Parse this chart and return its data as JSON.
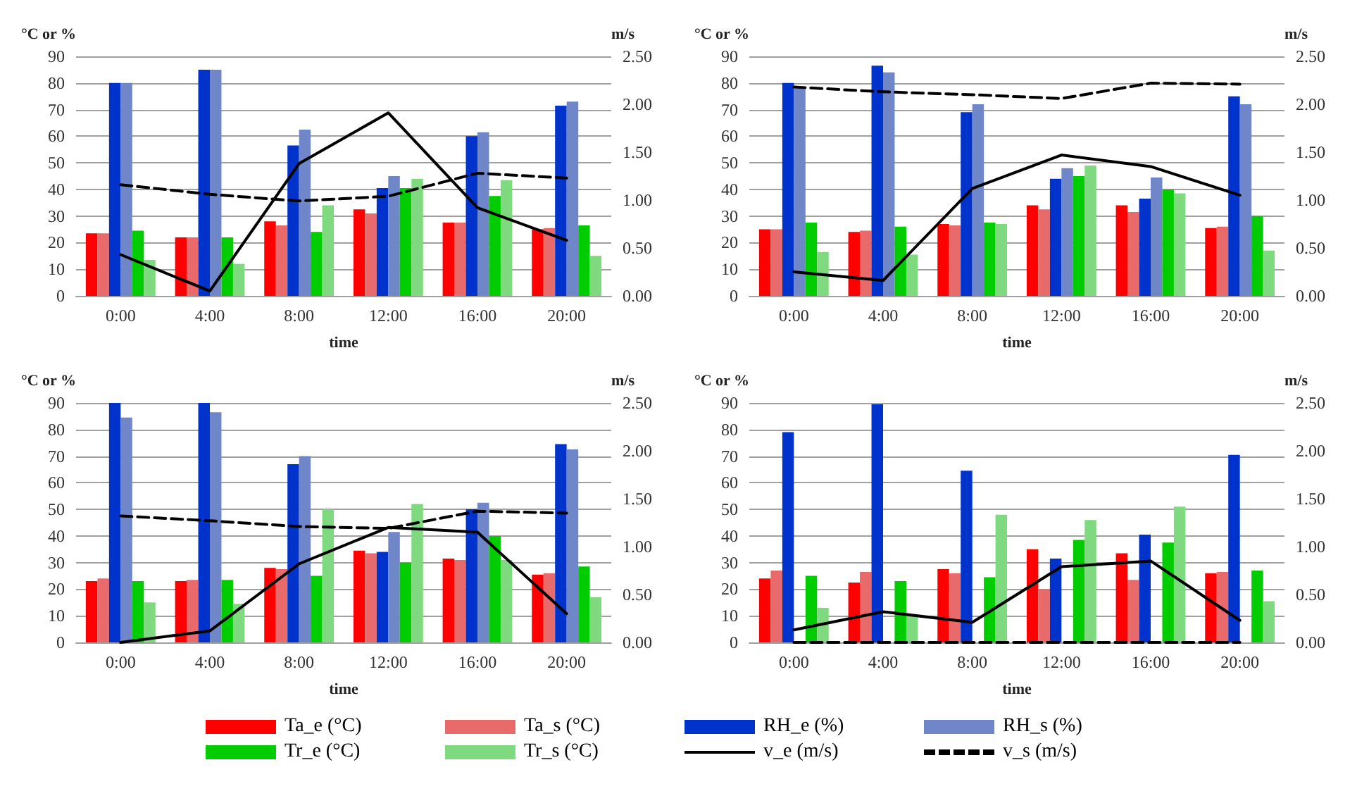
{
  "chart_data": [
    {
      "type": "bar",
      "ylabel": "°C or %",
      "y2label": "m/s",
      "xlabel": "time",
      "categories": [
        "0:00",
        "4:00",
        "8:00",
        "12:00",
        "16:00",
        "20:00"
      ],
      "ylim": [
        0,
        90
      ],
      "yticks": [
        0,
        10,
        20,
        30,
        40,
        50,
        60,
        70,
        80,
        90
      ],
      "y2lim": [
        0,
        2.5
      ],
      "y2ticks": [
        {
          "value": 0,
          "label": "0.00"
        },
        {
          "value": 0.5,
          "label": "0.50"
        },
        {
          "value": 1,
          "label": "1.00"
        },
        {
          "value": 1.5,
          "label": "1.50"
        },
        {
          "value": 2,
          "label": "2.00"
        },
        {
          "value": 2.5,
          "label": "2.50"
        }
      ],
      "grid": "y",
      "marker": "none",
      "legend": "bottom",
      "series": [
        {
          "name": "Ta_e (°C)",
          "color": "#ff0000",
          "values": [
            23.5,
            22,
            28,
            32.5,
            27.5,
            25
          ]
        },
        {
          "name": "Ta_s (°C)",
          "color": "#e86a6a",
          "values": [
            23.5,
            22,
            26.5,
            31,
            27.5,
            25.5
          ]
        },
        {
          "name": "RH_e (%)",
          "color": "#0033cc",
          "values": [
            80,
            85,
            56.5,
            40.5,
            60,
            71.5
          ]
        },
        {
          "name": "RH_s (%)",
          "color": "#6f86c9",
          "values": [
            80,
            85,
            62.5,
            45,
            61.5,
            73
          ]
        },
        {
          "name": "Tr_e (°C)",
          "color": "#00cc00",
          "values": [
            24.5,
            22,
            24,
            40.5,
            37.5,
            26.5
          ]
        },
        {
          "name": "Tr_s (°C)",
          "color": "#7fd97f",
          "values": [
            13.5,
            12,
            34,
            44,
            43.5,
            15
          ]
        },
        {
          "name": "v_e (m/s)",
          "type": "line",
          "axis": "y2",
          "line_style": "solid",
          "color": "#000000",
          "values": [
            0.43,
            0.05,
            1.38,
            1.91,
            0.92,
            0.58
          ]
        },
        {
          "name": "v_s (m/s)",
          "type": "line",
          "axis": "y2",
          "line_style": "dashed",
          "color": "#000000",
          "values": [
            1.16,
            1.06,
            0.99,
            1.04,
            1.28,
            1.23
          ]
        }
      ]
    },
    {
      "type": "bar",
      "ylabel": "°C or %",
      "y2label": "m/s",
      "xlabel": "time",
      "categories": [
        "0:00",
        "4:00",
        "8:00",
        "12:00",
        "16:00",
        "20:00"
      ],
      "ylim": [
        0,
        90
      ],
      "yticks": [
        0,
        10,
        20,
        30,
        40,
        50,
        60,
        70,
        80,
        90
      ],
      "y2lim": [
        0,
        2.5
      ],
      "y2ticks": [
        {
          "value": 0,
          "label": "0.00"
        },
        {
          "value": 0.5,
          "label": "0.50"
        },
        {
          "value": 1,
          "label": "1.00"
        },
        {
          "value": 1.5,
          "label": "1.50"
        },
        {
          "value": 2,
          "label": "2.00"
        },
        {
          "value": 2.5,
          "label": "2.50"
        }
      ],
      "grid": "y",
      "marker": "none",
      "series": [
        {
          "name": "Ta_e (°C)",
          "color": "#ff0000",
          "values": [
            25,
            24,
            27,
            34,
            34,
            25.5
          ]
        },
        {
          "name": "Ta_s (°C)",
          "color": "#e86a6a",
          "values": [
            25,
            24.5,
            26.5,
            32.5,
            31.5,
            26
          ]
        },
        {
          "name": "RH_e (%)",
          "color": "#0033cc",
          "values": [
            80,
            86.5,
            69,
            44,
            36.5,
            75
          ]
        },
        {
          "name": "RH_s (%)",
          "color": "#6f86c9",
          "values": [
            78,
            84,
            72,
            48,
            44.5,
            72
          ]
        },
        {
          "name": "Tr_e (°C)",
          "color": "#00cc00",
          "values": [
            27.5,
            26,
            27.5,
            45,
            40,
            30
          ]
        },
        {
          "name": "Tr_s (°C)",
          "color": "#7fd97f",
          "values": [
            16.5,
            15.5,
            27,
            49,
            38.5,
            17
          ]
        },
        {
          "name": "v_e (m/s)",
          "type": "line",
          "axis": "y2",
          "line_style": "solid",
          "color": "#000000",
          "values": [
            0.25,
            0.16,
            1.12,
            1.47,
            1.35,
            1.05
          ]
        },
        {
          "name": "v_s (m/s)",
          "type": "line",
          "axis": "y2",
          "line_style": "dashed",
          "color": "#000000",
          "values": [
            2.18,
            2.13,
            2.1,
            2.06,
            2.22,
            2.21
          ]
        }
      ]
    },
    {
      "type": "bar",
      "ylabel": "°C or %",
      "y2label": "m/s",
      "xlabel": "time",
      "categories": [
        "0:00",
        "4:00",
        "8:00",
        "12:00",
        "16:00",
        "20:00"
      ],
      "ylim": [
        0,
        90
      ],
      "yticks": [
        0,
        10,
        20,
        30,
        40,
        50,
        60,
        70,
        80,
        90
      ],
      "y2lim": [
        0,
        2.5
      ],
      "y2ticks": [
        {
          "value": 0,
          "label": "0.00"
        },
        {
          "value": 0.5,
          "label": "0.50"
        },
        {
          "value": 1,
          "label": "1.00"
        },
        {
          "value": 1.5,
          "label": "1.50"
        },
        {
          "value": 2,
          "label": "2.00"
        },
        {
          "value": 2.5,
          "label": "2.50"
        }
      ],
      "grid": "y",
      "marker": "none",
      "series": [
        {
          "name": "Ta_e (°C)",
          "color": "#ff0000",
          "values": [
            23,
            23,
            28,
            34.5,
            31.5,
            25.5
          ]
        },
        {
          "name": "Ta_s (°C)",
          "color": "#e86a6a",
          "values": [
            24,
            23.5,
            27.5,
            33.5,
            31,
            26
          ]
        },
        {
          "name": "RH_e (%)",
          "color": "#0033cc",
          "values": [
            90,
            90,
            67,
            34,
            50,
            74.5
          ]
        },
        {
          "name": "RH_s (%)",
          "color": "#6f86c9",
          "values": [
            84.5,
            86.5,
            70,
            41.5,
            52.5,
            72.5
          ]
        },
        {
          "name": "Tr_e (°C)",
          "color": "#00cc00",
          "values": [
            23,
            23.5,
            25,
            30,
            40,
            28.5
          ]
        },
        {
          "name": "Tr_s (°C)",
          "color": "#7fd97f",
          "values": [
            15,
            14.5,
            50,
            52,
            31,
            17
          ]
        },
        {
          "name": "v_e (m/s)",
          "type": "line",
          "axis": "y2",
          "line_style": "solid",
          "color": "#000000",
          "values": [
            0,
            0.12,
            0.82,
            1.2,
            1.15,
            0.3
          ]
        },
        {
          "name": "v_s (m/s)",
          "type": "line",
          "axis": "y2",
          "line_style": "dashed",
          "color": "#000000",
          "values": [
            1.32,
            1.27,
            1.21,
            1.19,
            1.37,
            1.35
          ]
        }
      ]
    },
    {
      "type": "bar",
      "ylabel": "°C or %",
      "y2label": "m/s",
      "xlabel": "time",
      "categories": [
        "0:00",
        "4:00",
        "8:00",
        "12:00",
        "16:00",
        "20:00"
      ],
      "ylim": [
        0,
        90
      ],
      "yticks": [
        0,
        10,
        20,
        30,
        40,
        50,
        60,
        70,
        80,
        90
      ],
      "y2lim": [
        0,
        2.5
      ],
      "y2ticks": [
        {
          "value": 0,
          "label": "0.00"
        },
        {
          "value": 0.5,
          "label": "0.50"
        },
        {
          "value": 1,
          "label": "1.00"
        },
        {
          "value": 1.5,
          "label": "1.50"
        },
        {
          "value": 2,
          "label": "2.00"
        },
        {
          "value": 2.5,
          "label": "2.50"
        }
      ],
      "grid": "y",
      "marker": "none",
      "series": [
        {
          "name": "Ta_e (°C)",
          "color": "#ff0000",
          "values": [
            24,
            22.5,
            27.5,
            35,
            33.5,
            26
          ]
        },
        {
          "name": "Ta_s (°C)",
          "color": "#e86a6a",
          "values": [
            27,
            26.5,
            26,
            20,
            23.5,
            26.5
          ]
        },
        {
          "name": "RH_e (%)",
          "color": "#0033cc",
          "values": [
            79,
            89.5,
            64.5,
            31.5,
            40.5,
            70.5
          ]
        },
        {
          "name": "RH_s (%)",
          "color": "#6f86c9",
          "values": [
            null,
            null,
            null,
            null,
            null,
            null
          ]
        },
        {
          "name": "Tr_e (°C)",
          "color": "#00cc00",
          "values": [
            25,
            23,
            24.5,
            38.5,
            37.5,
            27
          ]
        },
        {
          "name": "Tr_s (°C)",
          "color": "#7fd97f",
          "values": [
            13,
            10,
            48,
            46,
            51,
            15.5
          ]
        },
        {
          "name": "v_e (m/s)",
          "type": "line",
          "axis": "y2",
          "line_style": "solid",
          "color": "#000000",
          "values": [
            0.13,
            0.32,
            0.21,
            0.79,
            0.85,
            0.23
          ]
        },
        {
          "name": "v_s (m/s)",
          "type": "line",
          "axis": "y2",
          "line_style": "dashed",
          "color": "#000000",
          "values": [
            0,
            0,
            0,
            0,
            0,
            0
          ]
        }
      ]
    }
  ]
}
